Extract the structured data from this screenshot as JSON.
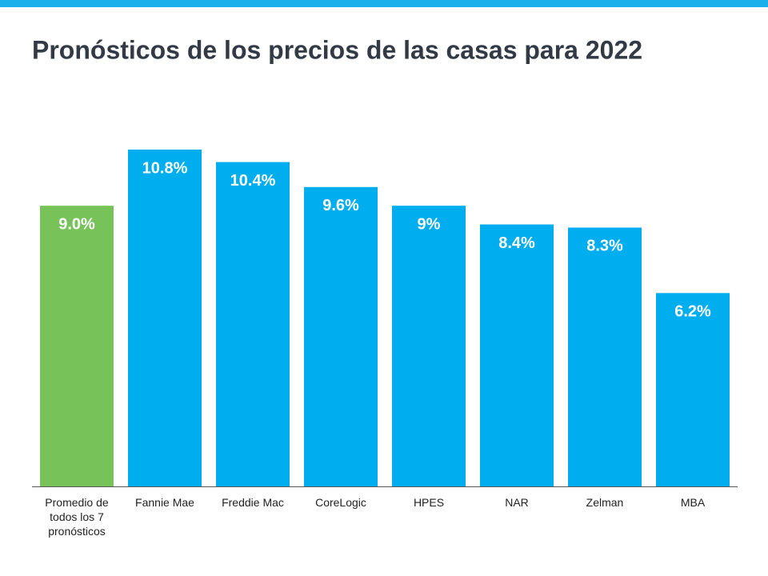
{
  "chart_data": {
    "type": "bar",
    "title": "Pronósticos de los precios de las casas para 2022",
    "categories": [
      "Promedio de todos los 7 pronósticos",
      "Fannie Mae",
      "Freddie Mac",
      "CoreLogic",
      "HPES",
      "NAR",
      "Zelman",
      "MBA"
    ],
    "values": [
      9.0,
      10.8,
      10.4,
      9.6,
      9,
      8.4,
      8.3,
      6.2
    ],
    "value_labels": [
      "9.0%",
      "10.8%",
      "10.4%",
      "9.6%",
      "9%",
      "8.4%",
      "8.3%",
      "6.2%"
    ],
    "colors": [
      "#77c35a",
      "#00aeef",
      "#00aeef",
      "#00aeef",
      "#00aeef",
      "#00aeef",
      "#00aeef",
      "#00aeef"
    ]
  }
}
